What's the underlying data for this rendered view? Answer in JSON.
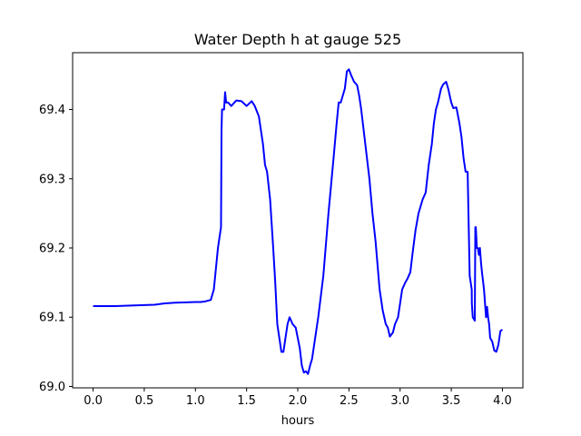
{
  "chart_data": {
    "type": "line",
    "title": "Water Depth h at gauge 525",
    "xlabel": "hours",
    "ylabel": "",
    "xlim": [
      -0.2,
      4.2
    ],
    "ylim": [
      68.998,
      69.482
    ],
    "grid": false,
    "xticks": [
      0.0,
      0.5,
      1.0,
      1.5,
      2.0,
      2.5,
      3.0,
      3.5,
      4.0
    ],
    "xtick_labels": [
      "0.0",
      "0.5",
      "1.0",
      "1.5",
      "2.0",
      "2.5",
      "3.0",
      "3.5",
      "4.0"
    ],
    "yticks": [
      69.0,
      69.1,
      69.2,
      69.3,
      69.4
    ],
    "ytick_labels": [
      "69.0",
      "69.1",
      "69.2",
      "69.3",
      "69.4"
    ],
    "series": [
      {
        "color": "#0000ff",
        "x": [
          0.0,
          0.2,
          0.4,
          0.6,
          0.7,
          0.8,
          1.0,
          1.05,
          1.1,
          1.15,
          1.18,
          1.2,
          1.22,
          1.25,
          1.255,
          1.26,
          1.28,
          1.29,
          1.3,
          1.32,
          1.35,
          1.4,
          1.45,
          1.5,
          1.55,
          1.58,
          1.62,
          1.66,
          1.68,
          1.7,
          1.73,
          1.76,
          1.78,
          1.8,
          1.82,
          1.84,
          1.86,
          1.88,
          1.9,
          1.92,
          1.95,
          1.98,
          2.0,
          2.02,
          2.04,
          2.06,
          2.08,
          2.1,
          2.12,
          2.14,
          2.16,
          2.2,
          2.25,
          2.3,
          2.35,
          2.38,
          2.4,
          2.42,
          2.44,
          2.46,
          2.48,
          2.5,
          2.52,
          2.55,
          2.58,
          2.6,
          2.62,
          2.66,
          2.7,
          2.73,
          2.76,
          2.8,
          2.83,
          2.86,
          2.88,
          2.9,
          2.93,
          2.95,
          2.98,
          3.0,
          3.02,
          3.05,
          3.07,
          3.1,
          3.12,
          3.15,
          3.18,
          3.2,
          3.22,
          3.25,
          3.28,
          3.31,
          3.33,
          3.35,
          3.37,
          3.4,
          3.42,
          3.45,
          3.47,
          3.5,
          3.52,
          3.55,
          3.58,
          3.6,
          3.62,
          3.64,
          3.66,
          3.68,
          3.7,
          3.701,
          3.71,
          3.73,
          3.735,
          3.74,
          3.75,
          3.76,
          3.77,
          3.78,
          3.79,
          3.8,
          3.82,
          3.84,
          3.85,
          3.86,
          3.87,
          3.88,
          3.9,
          3.92,
          3.94,
          3.96,
          3.98,
          4.0
        ],
        "y": [
          69.116,
          69.116,
          69.117,
          69.118,
          69.12,
          69.121,
          69.122,
          69.122,
          69.123,
          69.125,
          69.14,
          69.17,
          69.2,
          69.23,
          69.37,
          69.4,
          69.4,
          69.425,
          69.41,
          69.41,
          69.405,
          69.413,
          69.412,
          69.405,
          69.412,
          69.405,
          69.39,
          69.35,
          69.32,
          69.31,
          69.27,
          69.2,
          69.15,
          69.09,
          69.07,
          69.05,
          69.05,
          69.07,
          69.09,
          69.1,
          69.09,
          69.085,
          69.07,
          69.055,
          69.03,
          69.02,
          69.022,
          69.018,
          69.03,
          69.04,
          69.06,
          69.1,
          69.16,
          69.25,
          69.33,
          69.38,
          69.41,
          69.41,
          69.42,
          69.43,
          69.455,
          69.458,
          69.45,
          69.44,
          69.435,
          69.42,
          69.4,
          69.35,
          69.3,
          69.25,
          69.21,
          69.14,
          69.11,
          69.09,
          69.085,
          69.072,
          69.078,
          69.09,
          69.1,
          69.12,
          69.14,
          69.15,
          69.155,
          69.165,
          69.19,
          69.225,
          69.25,
          69.26,
          69.27,
          69.28,
          69.32,
          69.35,
          69.38,
          69.4,
          69.41,
          69.43,
          69.436,
          69.44,
          69.43,
          69.41,
          69.402,
          69.403,
          69.38,
          69.36,
          69.33,
          69.31,
          69.31,
          69.16,
          69.14,
          69.12,
          69.1,
          69.095,
          69.23,
          69.23,
          69.2,
          69.2,
          69.19,
          69.2,
          69.18,
          69.165,
          69.14,
          69.1,
          69.115,
          69.1,
          69.09,
          69.07,
          69.065,
          69.052,
          69.05,
          69.06,
          69.08,
          69.082
        ]
      }
    ]
  }
}
